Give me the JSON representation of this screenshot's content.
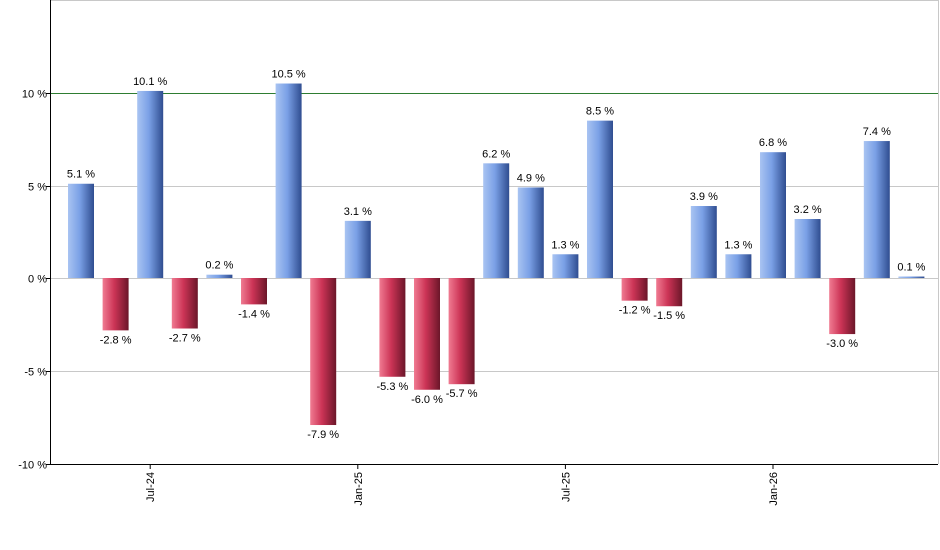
{
  "chart_data": {
    "type": "bar",
    "title": "",
    "xlabel": "",
    "ylabel": "",
    "ylim": [
      -10,
      15
    ],
    "y_ticks": [
      {
        "value": -10,
        "label": "-10 %"
      },
      {
        "value": -5,
        "label": "-5 %"
      },
      {
        "value": 0,
        "label": "0 %"
      },
      {
        "value": 5,
        "label": "5 %"
      },
      {
        "value": 10,
        "label": "10 %"
      }
    ],
    "reference_line": {
      "value": 10,
      "color": "#2e7d32"
    },
    "x_ticks": [
      {
        "index": 2,
        "label": "Jul-24"
      },
      {
        "index": 8,
        "label": "Jan-25"
      },
      {
        "index": 14,
        "label": "Jul-25"
      },
      {
        "index": 20,
        "label": "Jan-26"
      }
    ],
    "values": [
      5.1,
      -2.8,
      10.1,
      -2.7,
      0.2,
      -1.4,
      10.5,
      -7.9,
      3.1,
      -5.3,
      -6.0,
      -5.7,
      6.2,
      4.9,
      1.3,
      8.5,
      -1.2,
      -1.5,
      3.9,
      1.3,
      6.8,
      3.2,
      -3.0,
      7.4,
      0.1
    ],
    "labels": [
      "5.1 %",
      "-2.8 %",
      "10.1 %",
      "-2.7 %",
      "0.2 %",
      "-1.4 %",
      "10.5 %",
      "-7.9 %",
      "3.1 %",
      "-5.3 %",
      "-6.0 %",
      "-5.7 %",
      "6.2 %",
      "4.9 %",
      "1.3 %",
      "8.5 %",
      "-1.2 %",
      "-1.5 %",
      "3.9 %",
      "1.3 %",
      "6.8 %",
      "3.2 %",
      "-3.0 %",
      "7.4 %",
      "0.1 %"
    ],
    "grid": true,
    "colors": {
      "positive": "#6f95d8",
      "negative": "#c0304f",
      "grid": "#c8c8c8",
      "axis": "#000000"
    }
  }
}
